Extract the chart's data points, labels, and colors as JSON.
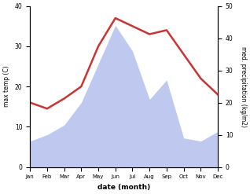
{
  "months": [
    "Jan",
    "Feb",
    "Mar",
    "Apr",
    "May",
    "Jun",
    "Jul",
    "Aug",
    "Sep",
    "Oct",
    "Nov",
    "Dec"
  ],
  "temperature": [
    16,
    14.5,
    17,
    20,
    30,
    37,
    35,
    33,
    34,
    28,
    22,
    18
  ],
  "precipitation": [
    8,
    10,
    13,
    20,
    32,
    44,
    36,
    21,
    27,
    9,
    8,
    11
  ],
  "temp_color": "#cc3333",
  "precip_fill_color": "#bfc9f0",
  "temp_ylim": [
    0,
    40
  ],
  "precip_ylim": [
    0,
    50
  ],
  "xlabel": "date (month)",
  "ylabel_left": "max temp (C)",
  "ylabel_right": "med. precipitation (kg/m2)",
  "background_color": "#ffffff",
  "temp_yticks": [
    0,
    10,
    20,
    30,
    40
  ],
  "precip_yticks": [
    0,
    10,
    20,
    30,
    40,
    50
  ]
}
